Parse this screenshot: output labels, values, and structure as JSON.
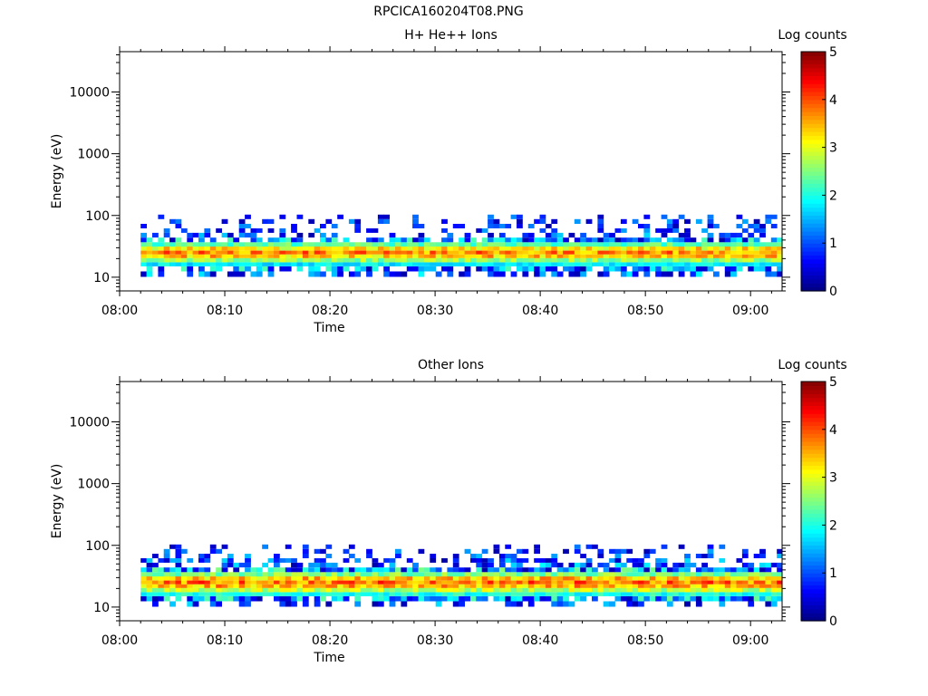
{
  "figure": {
    "title": "RPCICA160204T08.PNG"
  },
  "chart_data": [
    {
      "type": "heatmap",
      "title": "H+ He++ Ions",
      "xlabel": "Time",
      "ylabel": "Energy (eV)",
      "colorbar_label": "Log counts",
      "x_tick_labels": [
        "08:00",
        "08:10",
        "08:20",
        "08:30",
        "08:40",
        "08:50",
        "09:00"
      ],
      "y_tick_labels": [
        "10",
        "100",
        "1000",
        "10000"
      ],
      "colorbar_tick_labels": [
        "0",
        "1",
        "2",
        "3",
        "4",
        "5"
      ],
      "x_range": [
        "08:00",
        "09:03"
      ],
      "y_scale": "log",
      "y_range_ev": [
        6,
        45000
      ],
      "colorbar_range": [
        0,
        5
      ],
      "colormap": "jet",
      "grid": false,
      "data_time_range": [
        "08:02",
        "09:03"
      ],
      "bins": [
        {
          "energy_ev": 11,
          "peak": 0.6
        },
        {
          "energy_ev": 14,
          "peak": 0.9
        },
        {
          "energy_ev": 16,
          "peak": 1.8
        },
        {
          "energy_ev": 19,
          "peak": 2.6
        },
        {
          "energy_ev": 22,
          "peak": 3.4
        },
        {
          "energy_ev": 25,
          "peak": 3.7
        },
        {
          "energy_ev": 29,
          "peak": 3.2
        },
        {
          "energy_ev": 34,
          "peak": 2.3
        },
        {
          "energy_ev": 40,
          "peak": 0.9
        },
        {
          "energy_ev": 48,
          "peak": 0.5
        },
        {
          "energy_ev": 57,
          "peak": 0.4
        },
        {
          "energy_ev": 67,
          "peak": 0.3
        },
        {
          "energy_ev": 80,
          "peak": 0.3
        },
        {
          "energy_ev": 95,
          "peak": 0.2
        }
      ],
      "seed": 7
    },
    {
      "type": "heatmap",
      "title": "Other Ions",
      "xlabel": "Time",
      "ylabel": "Energy (eV)",
      "colorbar_label": "Log counts",
      "x_tick_labels": [
        "08:00",
        "08:10",
        "08:20",
        "08:30",
        "08:40",
        "08:50",
        "09:00"
      ],
      "y_tick_labels": [
        "10",
        "100",
        "1000",
        "10000"
      ],
      "colorbar_tick_labels": [
        "0",
        "1",
        "2",
        "3",
        "4",
        "5"
      ],
      "x_range": [
        "08:00",
        "09:03"
      ],
      "y_scale": "log",
      "y_range_ev": [
        6,
        45000
      ],
      "colorbar_range": [
        0,
        5
      ],
      "colormap": "jet",
      "grid": false,
      "data_time_range": [
        "08:02",
        "09:03"
      ],
      "bins": [
        {
          "energy_ev": 11,
          "peak": 0.5
        },
        {
          "energy_ev": 14,
          "peak": 1.0
        },
        {
          "energy_ev": 16,
          "peak": 2.0
        },
        {
          "energy_ev": 19,
          "peak": 2.8
        },
        {
          "energy_ev": 22,
          "peak": 3.5
        },
        {
          "energy_ev": 25,
          "peak": 3.8
        },
        {
          "energy_ev": 29,
          "peak": 3.4
        },
        {
          "energy_ev": 34,
          "peak": 2.5
        },
        {
          "energy_ev": 40,
          "peak": 1.1
        },
        {
          "energy_ev": 48,
          "peak": 0.6
        },
        {
          "energy_ev": 57,
          "peak": 0.5
        },
        {
          "energy_ev": 67,
          "peak": 0.4
        },
        {
          "energy_ev": 80,
          "peak": 0.3
        },
        {
          "energy_ev": 95,
          "peak": 0.2
        }
      ],
      "seed": 13
    }
  ]
}
